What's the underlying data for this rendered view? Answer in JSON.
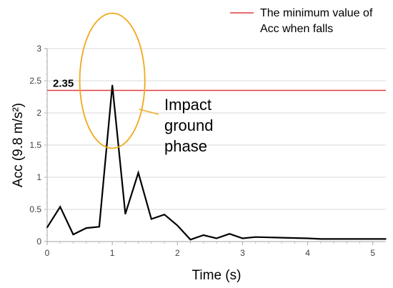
{
  "chart_data": {
    "type": "line",
    "xlabel": "Time (s)",
    "ylabel": "Acc (9.8 m/s²)",
    "xlim": [
      0,
      5.2
    ],
    "ylim": [
      0,
      3
    ],
    "x_ticks": [
      "0",
      "1",
      "2",
      "3",
      "4",
      "5"
    ],
    "y_ticks": [
      "0",
      "0.5",
      "1",
      "1.5",
      "2",
      "2.5",
      "3"
    ],
    "grid": "horizontal",
    "series": [
      {
        "color": "#000000",
        "x": [
          0,
          0.2,
          0.4,
          0.6,
          0.8,
          1.0,
          1.2,
          1.4,
          1.6,
          1.8,
          2.0,
          2.2,
          2.4,
          2.6,
          2.8,
          3.0,
          3.2,
          3.6,
          4.0,
          4.2,
          4.6,
          5.0,
          5.2
        ],
        "y": [
          0.22,
          0.54,
          0.11,
          0.21,
          0.23,
          2.43,
          0.43,
          1.07,
          0.35,
          0.42,
          0.25,
          0.03,
          0.1,
          0.05,
          0.12,
          0.05,
          0.07,
          0.06,
          0.05,
          0.04,
          0.04,
          0.04,
          0.04
        ]
      }
    ],
    "threshold": {
      "value": 2.35,
      "label": "2.35",
      "color": "#e03c3c",
      "legend_line1": "The minimum value of",
      "legend_line2": "Acc when falls"
    },
    "annotation": {
      "lines": [
        "Impact",
        "ground",
        "phase"
      ],
      "color": "#f2a81d",
      "center_x": 1.0,
      "center_y": 2.5,
      "radius_x": 0.5,
      "radius_y": 1.05
    }
  }
}
